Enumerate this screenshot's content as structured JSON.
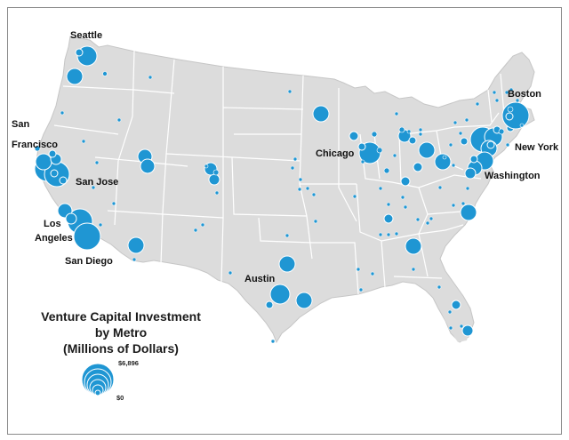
{
  "colors": {
    "land": "#dcdcdc",
    "state_border": "#ffffff",
    "bubble": "#1f96d3",
    "bubble_stroke": "#ffffff",
    "frame": "#8a8a8a"
  },
  "legend": {
    "title_line1": "Venture Capital Investment",
    "title_line2": "by Metro",
    "title_line3": "(Millions of Dollars)",
    "max_label": "$6,896",
    "min_label": "$0"
  },
  "cities": [
    {
      "id": "seattle",
      "name": "Seattle"
    },
    {
      "id": "san-francisco",
      "name_line1": "San",
      "name_line2": "Francisco"
    },
    {
      "id": "san-jose",
      "name": "San Jose"
    },
    {
      "id": "los-angeles",
      "name_line1": "Los",
      "name_line2": "Angeles"
    },
    {
      "id": "san-diego",
      "name": "San Diego"
    },
    {
      "id": "austin",
      "name": "Austin"
    },
    {
      "id": "chicago",
      "name": "Chicago"
    },
    {
      "id": "boston",
      "name": "Boston"
    },
    {
      "id": "new-york",
      "name": "New York"
    },
    {
      "id": "washington",
      "name": "Washington"
    }
  ]
}
